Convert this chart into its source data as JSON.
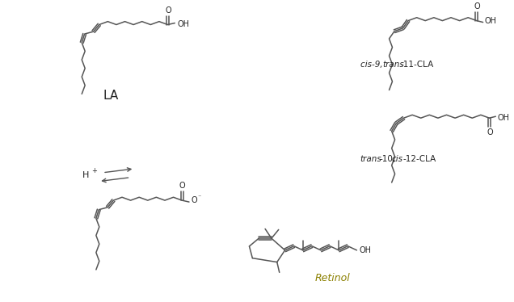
{
  "background_color": "#ffffff",
  "figure_width": 6.36,
  "figure_height": 3.74,
  "label_LA": "LA",
  "label_cis9": "cis-9, trans-11-CLA",
  "label_trans10": "trans-10,cis-12-CLA",
  "label_retinol": "Retinol",
  "retinol_color": "#8B8000",
  "line_color": "#555555",
  "text_color": "#222222",
  "lw": 1.1,
  "seg": 11.5
}
